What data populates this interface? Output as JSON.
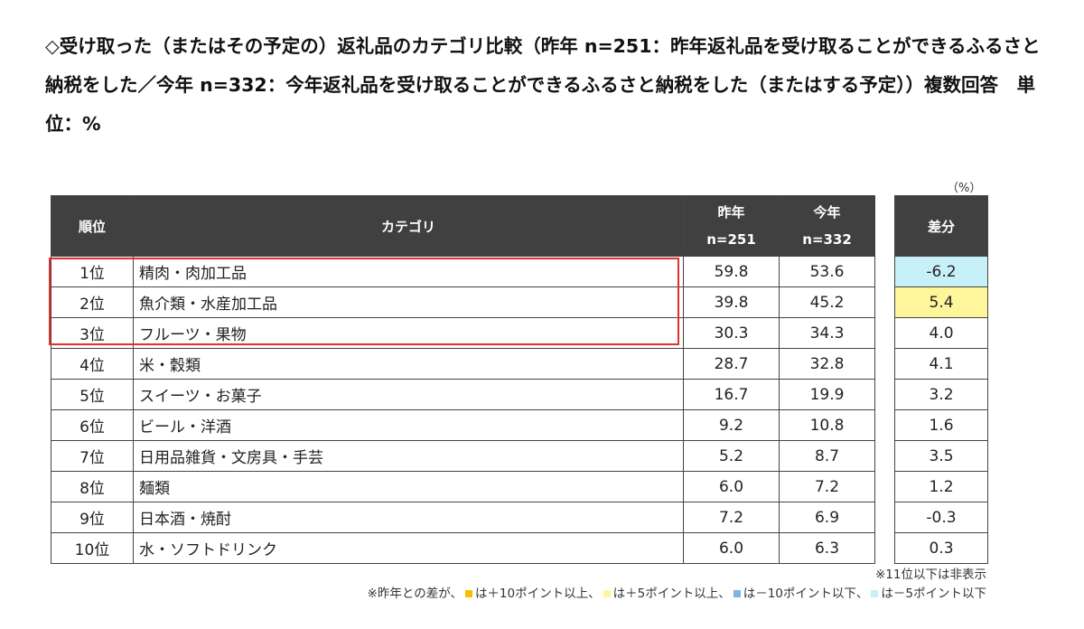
{
  "title": "◇受け取った（またはその予定の）返礼品のカテゴリ比較（昨年 n=251：昨年返礼品を受け取ることができるふるさと納税をした／今年 n=332：今年返礼品を受け取ることができるふるさと納税をした（またはする予定））複数回答　単位：%",
  "unit_label": "（%）",
  "headers": {
    "rank": "順位",
    "category": "カテゴリ",
    "last_year": "昨年",
    "last_year_n": "n=251",
    "this_year": "今年",
    "this_year_n": "n=332",
    "diff": "差分"
  },
  "colors": {
    "header_bg": "#404040",
    "highlight_border": "#e03030",
    "plus10": "#f5c000",
    "plus5": "#fff59a",
    "minus10": "#7fb2e6",
    "minus5": "#c8f0f8"
  },
  "chart_data": {
    "type": "table",
    "columns": [
      "順位",
      "カテゴリ",
      "昨年 n=251",
      "今年 n=332",
      "差分"
    ],
    "rows": [
      {
        "rank": "1位",
        "category": "精肉・肉加工品",
        "last_year": "59.8",
        "this_year": "53.6",
        "diff": "-6.2",
        "shade": "minus5"
      },
      {
        "rank": "2位",
        "category": "魚介類・水産加工品",
        "last_year": "39.8",
        "this_year": "45.2",
        "diff": "5.4",
        "shade": "plus5"
      },
      {
        "rank": "3位",
        "category": "フルーツ・果物",
        "last_year": "30.3",
        "this_year": "34.3",
        "diff": "4.0",
        "shade": ""
      },
      {
        "rank": "4位",
        "category": "米・穀類",
        "last_year": "28.7",
        "this_year": "32.8",
        "diff": "4.1",
        "shade": ""
      },
      {
        "rank": "5位",
        "category": "スイーツ・お菓子",
        "last_year": "16.7",
        "this_year": "19.9",
        "diff": "3.2",
        "shade": ""
      },
      {
        "rank": "6位",
        "category": "ビール・洋酒",
        "last_year": "9.2",
        "this_year": "10.8",
        "diff": "1.6",
        "shade": ""
      },
      {
        "rank": "7位",
        "category": "日用品雑貨・文房具・手芸",
        "last_year": "5.2",
        "this_year": "8.7",
        "diff": "3.5",
        "shade": ""
      },
      {
        "rank": "8位",
        "category": "麺類",
        "last_year": "6.0",
        "this_year": "7.2",
        "diff": "1.2",
        "shade": ""
      },
      {
        "rank": "9位",
        "category": "日本酒・焼酎",
        "last_year": "7.2",
        "this_year": "6.9",
        "diff": "-0.3",
        "shade": ""
      },
      {
        "rank": "10位",
        "category": "水・ソフトドリンク",
        "last_year": "6.0",
        "this_year": "6.3",
        "diff": "0.3",
        "shade": ""
      }
    ]
  },
  "notes": {
    "line1": "※11位以下は非表示",
    "line2_prefix": "※昨年との差が、",
    "legend": [
      {
        "color_key": "plus10",
        "text": "は＋10ポイント以上、"
      },
      {
        "color_key": "plus5",
        "text": "は＋5ポイント以上、"
      },
      {
        "color_key": "minus10",
        "text": "は－10ポイント以下、"
      },
      {
        "color_key": "minus5",
        "text": "は－5ポイント以下"
      }
    ]
  }
}
